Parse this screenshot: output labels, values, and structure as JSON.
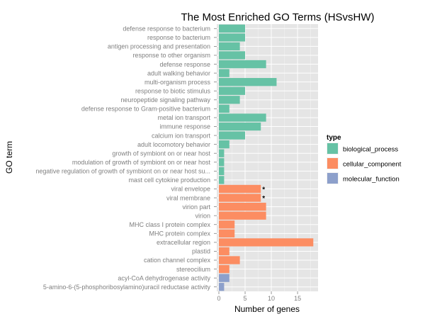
{
  "chart_data": {
    "type": "bar",
    "orientation": "horizontal",
    "title": "The Most Enriched GO Terms (HSvsHW)",
    "xlabel": "Number of genes",
    "ylabel": "GO term",
    "xlim": [
      0,
      18.5
    ],
    "x_ticks": [
      0,
      5,
      10,
      15
    ],
    "grid": true,
    "legend": {
      "title": "type",
      "placement": "right",
      "entries": [
        {
          "name": "biological_process",
          "color": "#66c2a5"
        },
        {
          "name": "cellular_component",
          "color": "#fc8d62"
        },
        {
          "name": "molecular_function",
          "color": "#8da0cb"
        }
      ]
    },
    "bars": [
      {
        "term": "defense response to bacterium",
        "value": 5,
        "type": "biological_process",
        "mark": ""
      },
      {
        "term": "response to bacterium",
        "value": 5,
        "type": "biological_process",
        "mark": ""
      },
      {
        "term": "antigen processing and presentation",
        "value": 4,
        "type": "biological_process",
        "mark": ""
      },
      {
        "term": "response to other organism",
        "value": 5,
        "type": "biological_process",
        "mark": ""
      },
      {
        "term": "defense response",
        "value": 9,
        "type": "biological_process",
        "mark": ""
      },
      {
        "term": "adult walking behavior",
        "value": 2,
        "type": "biological_process",
        "mark": ""
      },
      {
        "term": "multi-organism process",
        "value": 11,
        "type": "biological_process",
        "mark": ""
      },
      {
        "term": "response to biotic stimulus",
        "value": 5,
        "type": "biological_process",
        "mark": ""
      },
      {
        "term": "neuropeptide signaling pathway",
        "value": 4,
        "type": "biological_process",
        "mark": ""
      },
      {
        "term": "defense response to Gram-positive bacterium",
        "value": 2,
        "type": "biological_process",
        "mark": ""
      },
      {
        "term": "metal ion transport",
        "value": 9,
        "type": "biological_process",
        "mark": ""
      },
      {
        "term": "immune response",
        "value": 8,
        "type": "biological_process",
        "mark": ""
      },
      {
        "term": "calcium ion transport",
        "value": 5,
        "type": "biological_process",
        "mark": ""
      },
      {
        "term": "adult locomotory behavior",
        "value": 2,
        "type": "biological_process",
        "mark": ""
      },
      {
        "term": "growth of symbiont on or near host",
        "value": 1,
        "type": "biological_process",
        "mark": ""
      },
      {
        "term": "modulation of growth of symbiont on or near host",
        "value": 1,
        "type": "biological_process",
        "mark": ""
      },
      {
        "term": "negative regulation of growth of symbiont on or near host su...",
        "value": 1,
        "type": "biological_process",
        "mark": ""
      },
      {
        "term": "mast cell cytokine production",
        "value": 1,
        "type": "biological_process",
        "mark": ""
      },
      {
        "term": "viral envelope",
        "value": 8,
        "type": "cellular_component",
        "mark": "*"
      },
      {
        "term": "viral membrane",
        "value": 8,
        "type": "cellular_component",
        "mark": "*"
      },
      {
        "term": "virion part",
        "value": 9,
        "type": "cellular_component",
        "mark": ""
      },
      {
        "term": "virion",
        "value": 9,
        "type": "cellular_component",
        "mark": ""
      },
      {
        "term": "MHC class I protein complex",
        "value": 3,
        "type": "cellular_component",
        "mark": ""
      },
      {
        "term": "MHC protein complex",
        "value": 3,
        "type": "cellular_component",
        "mark": ""
      },
      {
        "term": "extracellular region",
        "value": 18,
        "type": "cellular_component",
        "mark": ""
      },
      {
        "term": "plastid",
        "value": 2,
        "type": "cellular_component",
        "mark": ""
      },
      {
        "term": "cation channel complex",
        "value": 4,
        "type": "cellular_component",
        "mark": ""
      },
      {
        "term": "stereocilium",
        "value": 2,
        "type": "cellular_component",
        "mark": ""
      },
      {
        "term": "acyl-CoA dehydrogenase activity",
        "value": 2,
        "type": "molecular_function",
        "mark": ""
      },
      {
        "term": "5-amino-6-(5-phosphoribosylamino)uracil reductase activity",
        "value": 1,
        "type": "molecular_function",
        "mark": ""
      }
    ]
  }
}
